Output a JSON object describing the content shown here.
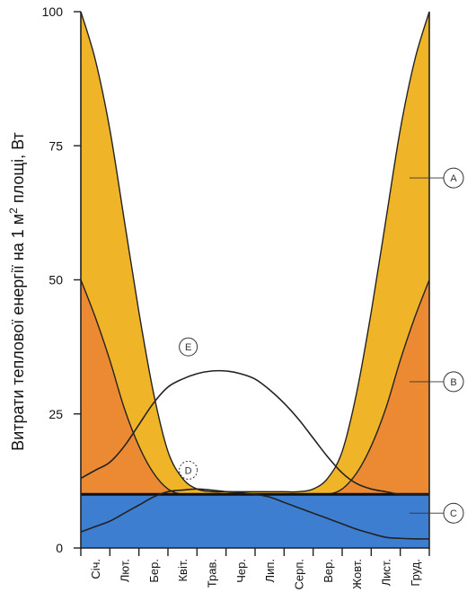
{
  "chart_data": {
    "type": "area",
    "ylabel": "Витрати теплової енергії на 1 м² площі, Вт",
    "ylim": [
      0,
      100
    ],
    "yticks": [
      0,
      25,
      50,
      75,
      100
    ],
    "categories": [
      "Січ.",
      "Лют.",
      "Бер.",
      "Квіт.",
      "Трав.",
      "Чер.",
      "Лип.",
      "Серп.",
      "Вер.",
      "Жовт.",
      "Лист.",
      "Груд."
    ],
    "x": [
      0,
      0.5,
      1,
      1.5,
      2,
      2.5,
      3,
      3.5,
      4,
      4.5,
      5,
      5.5,
      6,
      6.5,
      7,
      7.5,
      8,
      8.5,
      9,
      9.5,
      10,
      10.5,
      11,
      11.5,
      12
    ],
    "series": [
      {
        "name": "A",
        "color": "#f0b429",
        "values": [
          100,
          91,
          78,
          61,
          44,
          29,
          18,
          13,
          11,
          10.5,
          10.5,
          10.5,
          10.5,
          10.5,
          10.5,
          10.5,
          11,
          13,
          18,
          29,
          44,
          61,
          78,
          91,
          100
        ]
      },
      {
        "name": "B",
        "color": "#ec8a33",
        "values": [
          50,
          43,
          35,
          26,
          19,
          14,
          11,
          10,
          10,
          10,
          10,
          10,
          10,
          10,
          10,
          10,
          10,
          10,
          11,
          14,
          19,
          26,
          35,
          43,
          50
        ]
      },
      {
        "name": "C",
        "color": "#3e7ed0",
        "values": [
          10,
          10,
          10,
          10,
          10,
          10,
          10,
          10,
          10,
          10,
          10,
          10,
          10,
          10,
          10,
          10,
          10,
          10,
          10,
          10,
          10,
          10,
          10,
          10,
          10
        ]
      },
      {
        "name": "D",
        "values": [
          3,
          4,
          5,
          6.5,
          8,
          9.5,
          10.5,
          10.8,
          11,
          10.8,
          10.5,
          10.3,
          10,
          9.5,
          8.5,
          7.5,
          6.5,
          5.5,
          4.5,
          3.5,
          2.7,
          2,
          1.8,
          1.7,
          1.7
        ]
      },
      {
        "name": "E",
        "values": [
          13,
          14.5,
          16,
          19,
          23,
          27,
          30,
          31.5,
          32.5,
          33,
          33,
          32.5,
          31.5,
          29.5,
          27,
          24,
          20.5,
          17,
          14,
          12,
          11,
          10.5,
          10,
          10,
          10
        ]
      }
    ],
    "markers": [
      {
        "label": "A",
        "at_value": 69
      },
      {
        "label": "B",
        "at_value": 31
      },
      {
        "label": "C",
        "at_value": 6.5
      },
      {
        "label": "D",
        "x": 3.7,
        "y": 14.5
      },
      {
        "label": "E",
        "x": 3.7,
        "y": 37.5
      }
    ]
  }
}
